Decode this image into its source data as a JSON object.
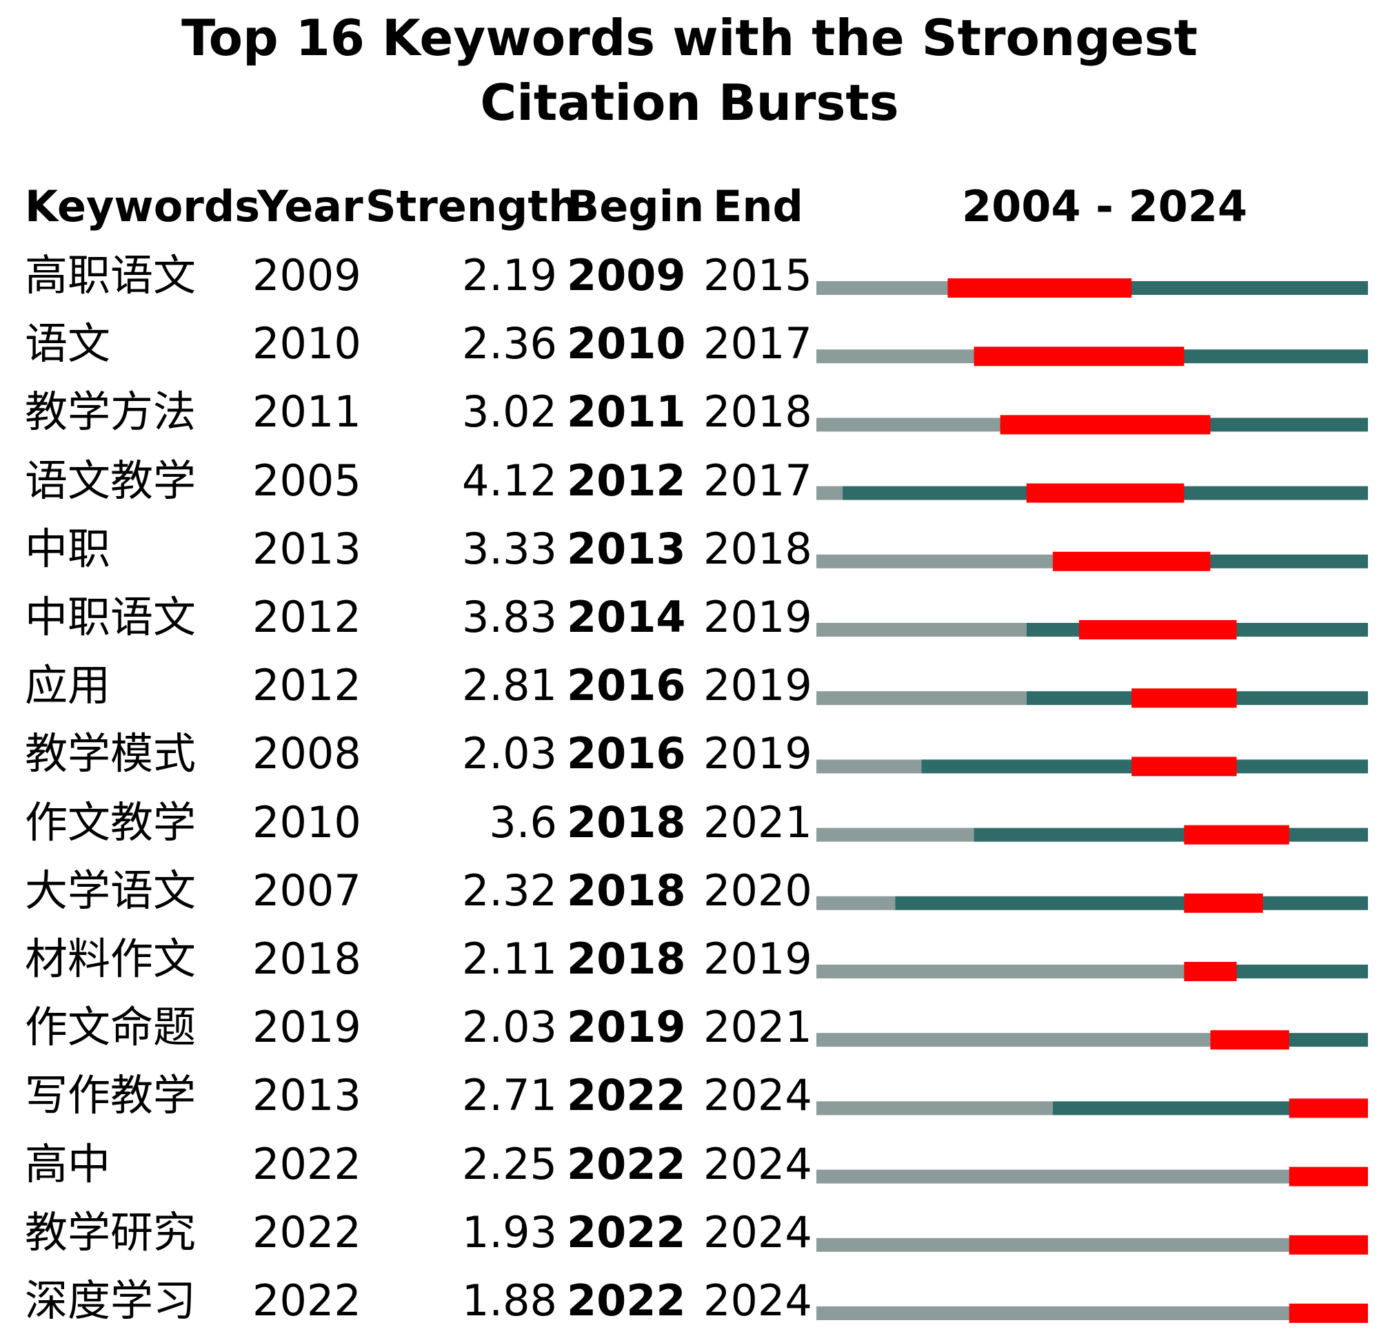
{
  "chart_data": {
    "type": "table",
    "title": "Top 16 Keywords with the Strongest Citation Bursts",
    "title_lines": [
      "Top 16 Keywords with the Strongest",
      "Citation Bursts"
    ],
    "columns": [
      "Keywords",
      "Year",
      "Strength",
      "Begin",
      "End",
      "2004 - 2024"
    ],
    "range": [
      2004,
      2024
    ],
    "colors": {
      "before": "#8c9c9a",
      "active": "#2e6b69",
      "burst": "#ff0000"
    },
    "rows": [
      {
        "keyword": "高职语文",
        "year": "2009",
        "strength": "2.19",
        "begin": "2009",
        "end": "2015"
      },
      {
        "keyword": "语文",
        "year": "2010",
        "strength": "2.36",
        "begin": "2010",
        "end": "2017"
      },
      {
        "keyword": "教学方法",
        "year": "2011",
        "strength": "3.02",
        "begin": "2011",
        "end": "2018"
      },
      {
        "keyword": "语文教学",
        "year": "2005",
        "strength": "4.12",
        "begin": "2012",
        "end": "2017"
      },
      {
        "keyword": "中职",
        "year": "2013",
        "strength": "3.33",
        "begin": "2013",
        "end": "2018"
      },
      {
        "keyword": "中职语文",
        "year": "2012",
        "strength": "3.83",
        "begin": "2014",
        "end": "2019"
      },
      {
        "keyword": "应用",
        "year": "2012",
        "strength": "2.81",
        "begin": "2016",
        "end": "2019"
      },
      {
        "keyword": "教学模式",
        "year": "2008",
        "strength": "2.03",
        "begin": "2016",
        "end": "2019"
      },
      {
        "keyword": "作文教学",
        "year": "2010",
        "strength": "3.6",
        "begin": "2018",
        "end": "2021"
      },
      {
        "keyword": "大学语文",
        "year": "2007",
        "strength": "2.32",
        "begin": "2018",
        "end": "2020"
      },
      {
        "keyword": "材料作文",
        "year": "2018",
        "strength": "2.11",
        "begin": "2018",
        "end": "2019"
      },
      {
        "keyword": "作文命题",
        "year": "2019",
        "strength": "2.03",
        "begin": "2019",
        "end": "2021"
      },
      {
        "keyword": "写作教学",
        "year": "2013",
        "strength": "2.71",
        "begin": "2022",
        "end": "2024"
      },
      {
        "keyword": "高中",
        "year": "2022",
        "strength": "2.25",
        "begin": "2022",
        "end": "2024"
      },
      {
        "keyword": "教学研究",
        "year": "2022",
        "strength": "1.93",
        "begin": "2022",
        "end": "2024"
      },
      {
        "keyword": "深度学习",
        "year": "2022",
        "strength": "1.88",
        "begin": "2022",
        "end": "2024"
      }
    ]
  }
}
